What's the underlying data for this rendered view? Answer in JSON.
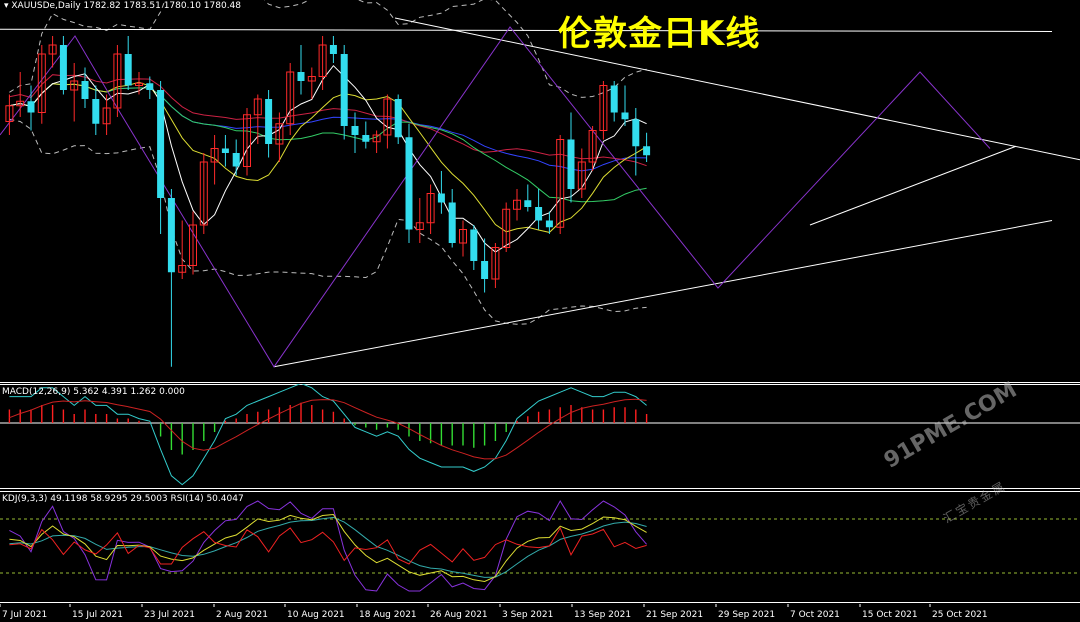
{
  "header": {
    "symbol_line": "▾ XAUUSDe,Daily  1782.82 1783.51 1780.10 1780.48",
    "title": "伦敦金日K线"
  },
  "macd_label": "MACD(12,26,9) 5.362 4.391 1.262 0.000",
  "kdj_label": "KDJ(9,3,3) 49.1198 58.9295 29.5003  RSI(14) 50.4047",
  "watermark": {
    "site": "91PME.COM",
    "tagline": "汇宝贵金属"
  },
  "colors": {
    "bull": "#ff2a2a",
    "bear": "#33ddee",
    "macd_pos": "#ff2020",
    "macd_neg": "#33dd33",
    "ma_short": "#ffffff",
    "ma_mid": "#dddd33",
    "ma_long": "#33cc66",
    "ma_blue": "#3344ff",
    "ma_red": "#cc2244",
    "trend": "#ffffff",
    "zigzag": "#8833cc"
  },
  "chart_data": {
    "type": "candlestick",
    "title": "伦敦金日K线",
    "symbol": "XAUUSDe",
    "timeframe": "Daily",
    "last": {
      "open": 1782.82,
      "high": 1783.51,
      "low": 1780.1,
      "close": 1780.48
    },
    "x_tick_labels": [
      "7 Jul 2021",
      "15 Jul 2021",
      "23 Jul 2021",
      "2 Aug 2021",
      "10 Aug 2021",
      "18 Aug 2021",
      "26 Aug 2021",
      "3 Sep 2021",
      "13 Sep 2021",
      "21 Sep 2021",
      "29 Sep 2021",
      "7 Oct 2021",
      "15 Oct 2021",
      "25 Oct 2021"
    ],
    "candles": [
      {
        "o": 1796,
        "h": 1808,
        "l": 1790,
        "c": 1803
      },
      {
        "o": 1803,
        "h": 1818,
        "l": 1798,
        "c": 1805
      },
      {
        "o": 1805,
        "h": 1812,
        "l": 1792,
        "c": 1800
      },
      {
        "o": 1800,
        "h": 1830,
        "l": 1795,
        "c": 1826
      },
      {
        "o": 1826,
        "h": 1834,
        "l": 1820,
        "c": 1830
      },
      {
        "o": 1830,
        "h": 1834,
        "l": 1808,
        "c": 1810
      },
      {
        "o": 1810,
        "h": 1822,
        "l": 1796,
        "c": 1814
      },
      {
        "o": 1814,
        "h": 1820,
        "l": 1802,
        "c": 1806
      },
      {
        "o": 1806,
        "h": 1812,
        "l": 1790,
        "c": 1795
      },
      {
        "o": 1795,
        "h": 1808,
        "l": 1790,
        "c": 1802
      },
      {
        "o": 1802,
        "h": 1830,
        "l": 1798,
        "c": 1826
      },
      {
        "o": 1826,
        "h": 1834,
        "l": 1810,
        "c": 1812
      },
      {
        "o": 1812,
        "h": 1818,
        "l": 1808,
        "c": 1813
      },
      {
        "o": 1813,
        "h": 1816,
        "l": 1806,
        "c": 1810
      },
      {
        "o": 1810,
        "h": 1814,
        "l": 1746,
        "c": 1762
      },
      {
        "o": 1762,
        "h": 1766,
        "l": 1687,
        "c": 1729
      },
      {
        "o": 1729,
        "h": 1752,
        "l": 1726,
        "c": 1732
      },
      {
        "o": 1732,
        "h": 1756,
        "l": 1728,
        "c": 1750
      },
      {
        "o": 1750,
        "h": 1782,
        "l": 1746,
        "c": 1778
      },
      {
        "o": 1778,
        "h": 1790,
        "l": 1768,
        "c": 1784
      },
      {
        "o": 1784,
        "h": 1790,
        "l": 1776,
        "c": 1782
      },
      {
        "o": 1782,
        "h": 1788,
        "l": 1772,
        "c": 1776
      },
      {
        "o": 1776,
        "h": 1802,
        "l": 1772,
        "c": 1799
      },
      {
        "o": 1799,
        "h": 1808,
        "l": 1786,
        "c": 1806
      },
      {
        "o": 1806,
        "h": 1810,
        "l": 1780,
        "c": 1786
      },
      {
        "o": 1786,
        "h": 1800,
        "l": 1778,
        "c": 1795
      },
      {
        "o": 1795,
        "h": 1822,
        "l": 1790,
        "c": 1818
      },
      {
        "o": 1818,
        "h": 1830,
        "l": 1808,
        "c": 1814
      },
      {
        "o": 1814,
        "h": 1820,
        "l": 1806,
        "c": 1816
      },
      {
        "o": 1816,
        "h": 1834,
        "l": 1810,
        "c": 1830
      },
      {
        "o": 1830,
        "h": 1834,
        "l": 1822,
        "c": 1826
      },
      {
        "o": 1826,
        "h": 1830,
        "l": 1788,
        "c": 1794
      },
      {
        "o": 1794,
        "h": 1800,
        "l": 1782,
        "c": 1790
      },
      {
        "o": 1790,
        "h": 1796,
        "l": 1784,
        "c": 1787
      },
      {
        "o": 1787,
        "h": 1792,
        "l": 1782,
        "c": 1790
      },
      {
        "o": 1790,
        "h": 1808,
        "l": 1784,
        "c": 1806
      },
      {
        "o": 1806,
        "h": 1808,
        "l": 1786,
        "c": 1789
      },
      {
        "o": 1789,
        "h": 1795,
        "l": 1742,
        "c": 1748
      },
      {
        "o": 1748,
        "h": 1762,
        "l": 1742,
        "c": 1751
      },
      {
        "o": 1751,
        "h": 1768,
        "l": 1746,
        "c": 1764
      },
      {
        "o": 1764,
        "h": 1774,
        "l": 1755,
        "c": 1760
      },
      {
        "o": 1760,
        "h": 1766,
        "l": 1740,
        "c": 1742
      },
      {
        "o": 1742,
        "h": 1752,
        "l": 1736,
        "c": 1748
      },
      {
        "o": 1748,
        "h": 1750,
        "l": 1730,
        "c": 1734
      },
      {
        "o": 1734,
        "h": 1744,
        "l": 1720,
        "c": 1726
      },
      {
        "o": 1726,
        "h": 1742,
        "l": 1722,
        "c": 1740
      },
      {
        "o": 1740,
        "h": 1760,
        "l": 1738,
        "c": 1757
      },
      {
        "o": 1757,
        "h": 1766,
        "l": 1752,
        "c": 1761
      },
      {
        "o": 1761,
        "h": 1768,
        "l": 1756,
        "c": 1758
      },
      {
        "o": 1758,
        "h": 1766,
        "l": 1748,
        "c": 1752
      },
      {
        "o": 1752,
        "h": 1756,
        "l": 1746,
        "c": 1749
      },
      {
        "o": 1749,
        "h": 1790,
        "l": 1746,
        "c": 1788
      },
      {
        "o": 1788,
        "h": 1800,
        "l": 1760,
        "c": 1766
      },
      {
        "o": 1766,
        "h": 1784,
        "l": 1762,
        "c": 1778
      },
      {
        "o": 1778,
        "h": 1794,
        "l": 1774,
        "c": 1792
      },
      {
        "o": 1792,
        "h": 1814,
        "l": 1788,
        "c": 1812
      },
      {
        "o": 1812,
        "h": 1814,
        "l": 1796,
        "c": 1800
      },
      {
        "o": 1800,
        "h": 1812,
        "l": 1794,
        "c": 1797
      },
      {
        "o": 1797,
        "h": 1802,
        "l": 1772,
        "c": 1785
      },
      {
        "o": 1785,
        "h": 1791,
        "l": 1778,
        "c": 1781
      }
    ],
    "macd": {
      "params": [
        12,
        26,
        9
      ],
      "values": [
        5.362,
        4.391,
        1.262,
        0.0
      ],
      "histogram": [
        3,
        3,
        3,
        4,
        4,
        3,
        2,
        3,
        2,
        2,
        1,
        1,
        0.5,
        0.2,
        -3,
        -6,
        -7,
        -6,
        -4,
        -2,
        0.5,
        1,
        2,
        2.5,
        3,
        3.5,
        4,
        4.5,
        4,
        3,
        2.5,
        1,
        -0.5,
        -1,
        -1.5,
        -1,
        -1.5,
        -3,
        -4,
        -4.5,
        -5,
        -5,
        -5,
        -5.5,
        -5,
        -4,
        -2,
        0.5,
        1.5,
        2.5,
        3,
        3.5,
        4,
        3.5,
        3,
        3,
        3.5,
        3.5,
        3,
        2
      ]
    },
    "kdj": {
      "params": [
        9,
        3,
        3
      ],
      "values": [
        49.1198,
        58.9295,
        29.5003
      ]
    },
    "rsi": {
      "period": 14,
      "value": 50.4047
    }
  }
}
